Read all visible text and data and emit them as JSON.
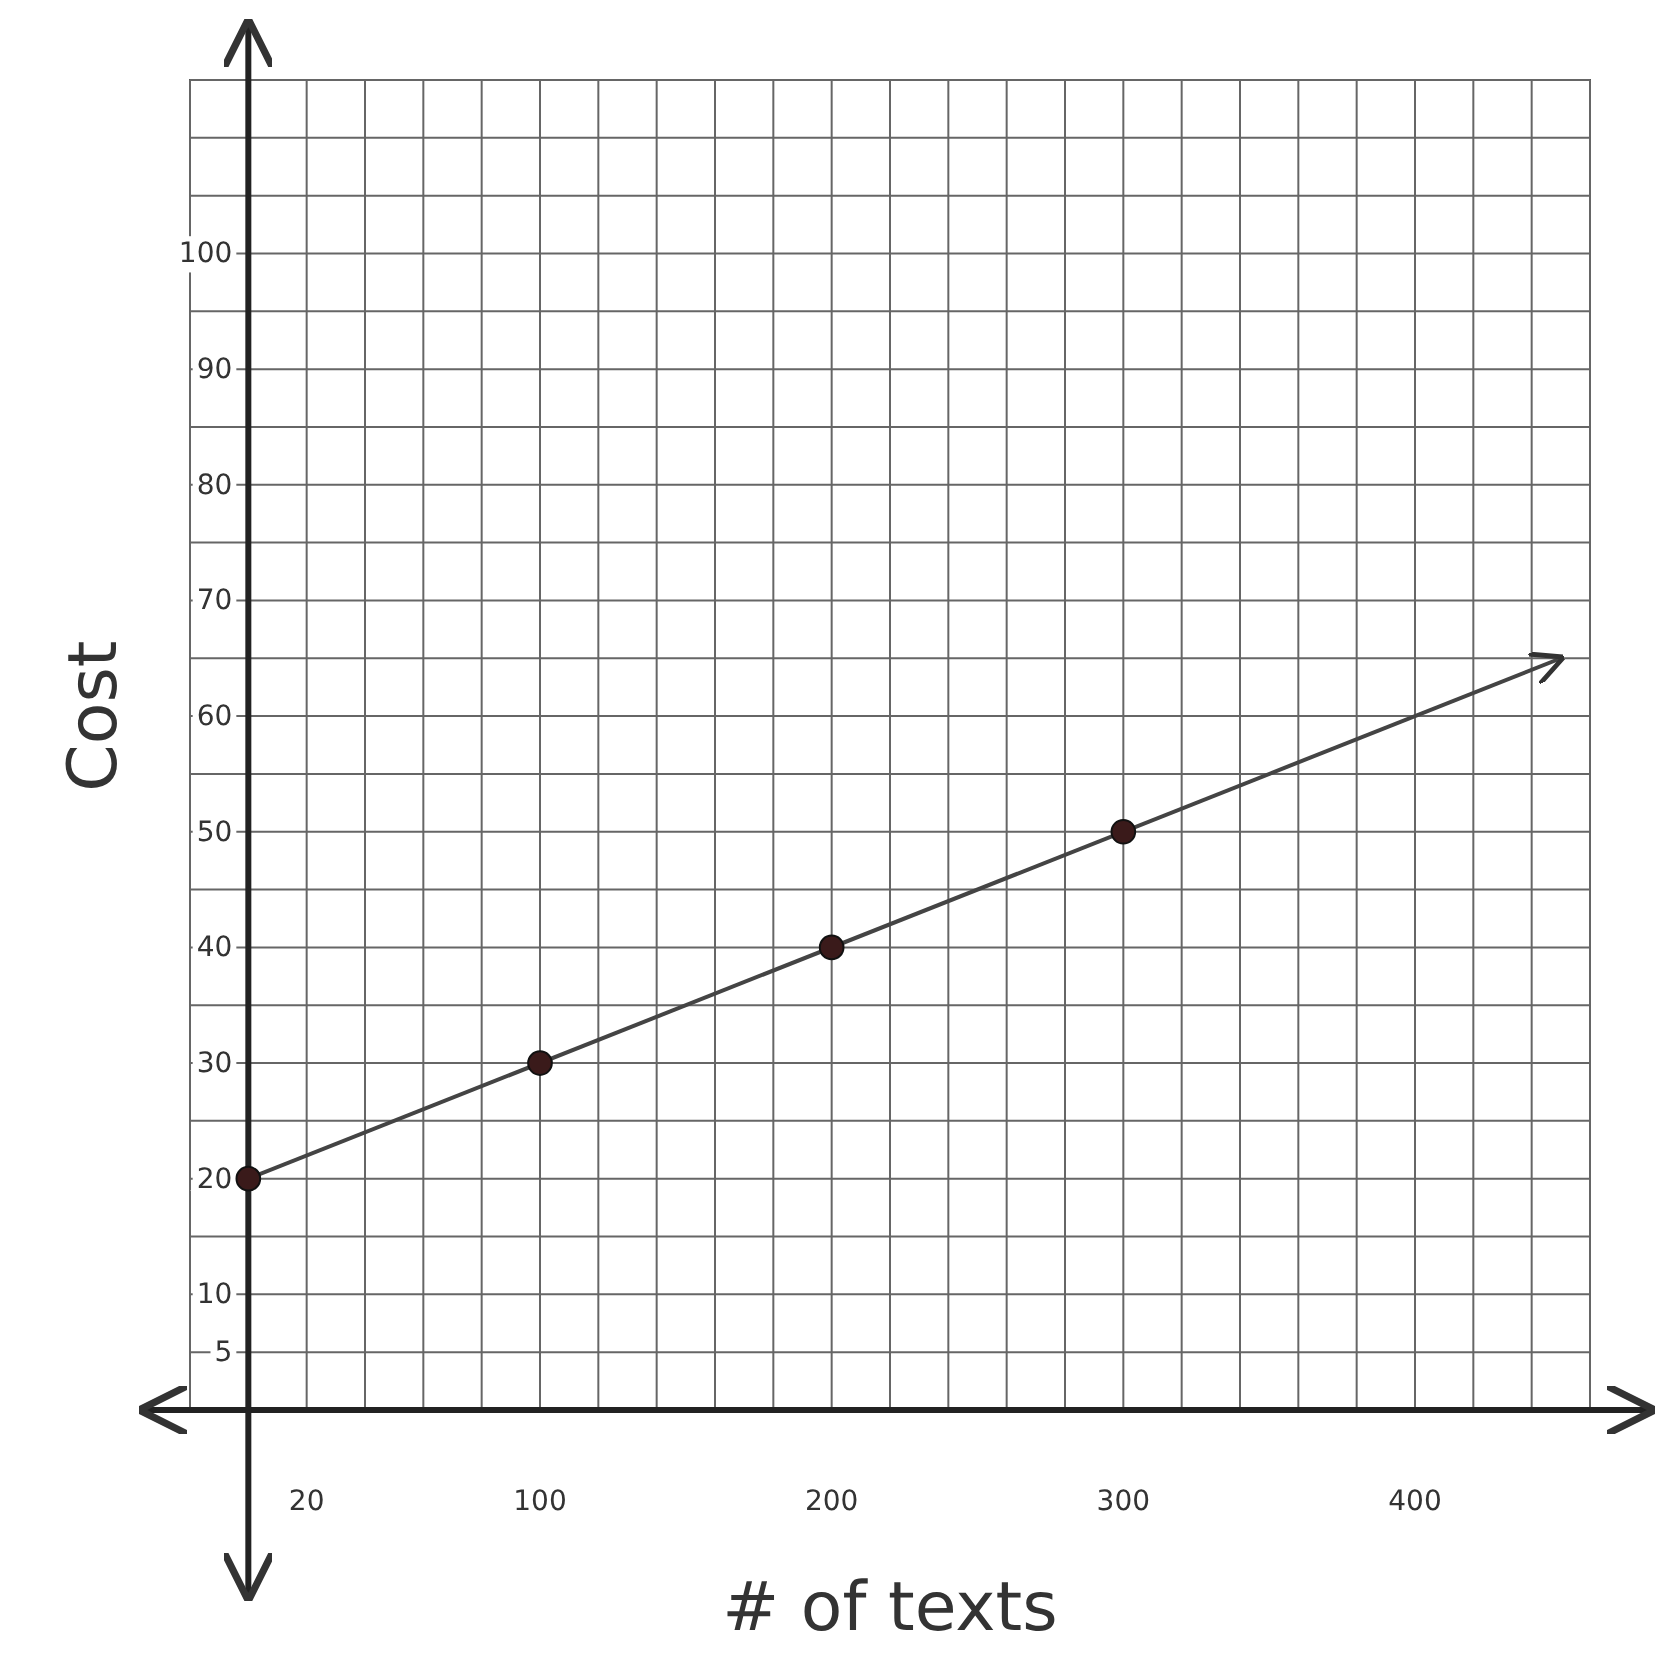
{
  "chart_data": {
    "type": "line",
    "xlabel": "# of texts",
    "ylabel": "Cost",
    "xlim": [
      -20,
      460
    ],
    "ylim": [
      0,
      115
    ],
    "xticks": [
      {
        "value": -20,
        "label": null
      },
      {
        "value": 0,
        "label": null
      },
      20,
      {
        "value": 40,
        "label": null
      },
      {
        "value": 60,
        "label": null
      },
      {
        "value": 80,
        "label": null
      },
      100,
      {
        "value": 120,
        "label": null
      },
      {
        "value": 140,
        "label": null
      },
      {
        "value": 160,
        "label": null
      },
      {
        "value": 180,
        "label": null
      },
      200,
      {
        "value": 220,
        "label": null
      },
      {
        "value": 240,
        "label": null
      },
      {
        "value": 260,
        "label": null
      },
      {
        "value": 280,
        "label": null
      },
      300,
      {
        "value": 320,
        "label": null
      },
      {
        "value": 340,
        "label": null
      },
      {
        "value": 360,
        "label": null
      },
      {
        "value": 380,
        "label": null
      },
      400,
      {
        "value": 420,
        "label": null
      },
      {
        "value": 440,
        "label": null
      },
      {
        "value": 460,
        "label": null
      }
    ],
    "yticks": [
      5,
      10,
      {
        "value": 15,
        "label": null
      },
      20,
      {
        "value": 25,
        "label": null
      },
      30,
      {
        "value": 35,
        "label": null
      },
      40,
      {
        "value": 45,
        "label": null
      },
      50,
      {
        "value": 55,
        "label": null
      },
      60,
      {
        "value": 65,
        "label": null
      },
      70,
      {
        "value": 75,
        "label": null
      },
      80,
      {
        "value": 85,
        "label": null
      },
      90,
      {
        "value": 95,
        "label": null
      },
      100,
      {
        "value": 105,
        "label": null
      },
      {
        "value": 110,
        "label": null
      },
      {
        "value": 115,
        "label": null
      }
    ],
    "grid": true,
    "series": [
      {
        "type": "line",
        "color": "#444444",
        "x": [
          0,
          450
        ],
        "values": [
          20,
          65
        ],
        "marker": "none"
      },
      {
        "type": "scatter",
        "color": "#3a1a1a",
        "x": [
          0,
          100,
          200,
          300
        ],
        "values": [
          20,
          30,
          40,
          50
        ],
        "marker": "circle"
      }
    ]
  }
}
